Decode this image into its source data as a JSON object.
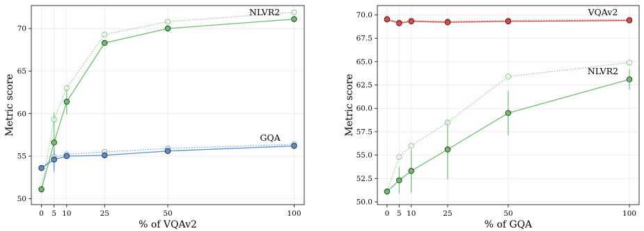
{
  "chart_data": [
    {
      "type": "line",
      "xlabel": "% of VQAv2",
      "ylabel": "Metric score",
      "xlim": [
        -4,
        104
      ],
      "ylim": [
        49.3,
        72.7
      ],
      "xticks": [
        0,
        5,
        10,
        25,
        50,
        100
      ],
      "yticks": [
        50,
        55,
        60,
        65,
        70
      ],
      "grid": true,
      "series": [
        {
          "name": "NLVR2",
          "color": "#6abf69",
          "x": [
            0,
            5,
            10,
            25,
            50,
            100
          ],
          "solid": [
            51.1,
            56.6,
            61.4,
            68.3,
            70.0,
            71.1
          ],
          "dotted": [
            51.1,
            59.3,
            63.0,
            69.3,
            70.8,
            71.9
          ],
          "err": [
            0.4,
            3.5,
            1.5,
            0.3,
            0.3,
            0.3
          ]
        },
        {
          "name": "GQA",
          "color": "#5b8ec7",
          "x": [
            0,
            5,
            10,
            25,
            50,
            100
          ],
          "solid": [
            53.6,
            54.6,
            55.0,
            55.1,
            55.6,
            56.2
          ],
          "dotted": [
            53.6,
            54.9,
            55.2,
            55.5,
            55.9,
            56.4
          ],
          "err": [
            0.3,
            1.1,
            0.3,
            0.2,
            0.2,
            0.2
          ]
        }
      ]
    },
    {
      "type": "line",
      "xlabel": "% of GQA",
      "ylabel": "Metric score",
      "xlim": [
        -4,
        104
      ],
      "ylim": [
        49.7,
        71.0
      ],
      "xticks": [
        0,
        5,
        10,
        25,
        50,
        100
      ],
      "yticks": [
        50.0,
        52.5,
        55.0,
        57.5,
        60.0,
        62.5,
        65.0,
        67.5,
        70.0
      ],
      "grid": true,
      "series": [
        {
          "name": "VQAv2",
          "color": "#d94a4a",
          "x": [
            0,
            5,
            10,
            25,
            50,
            100
          ],
          "solid": [
            69.5,
            69.1,
            69.3,
            69.2,
            69.3,
            69.4
          ],
          "dotted": [
            69.6,
            69.2,
            69.4,
            69.3,
            69.4,
            69.5
          ],
          "err": [
            0.3,
            0.3,
            0.2,
            0.2,
            0.2,
            0.2
          ]
        },
        {
          "name": "NLVR2",
          "color": "#6abf69",
          "x": [
            0,
            5,
            10,
            25,
            50,
            100
          ],
          "solid": [
            51.1,
            52.3,
            53.3,
            55.6,
            59.5,
            63.1
          ],
          "dotted": [
            51.1,
            54.8,
            56.0,
            58.5,
            63.4,
            64.9
          ],
          "err": [
            0.3,
            1.4,
            2.3,
            3.2,
            2.4,
            1.1
          ]
        }
      ]
    }
  ]
}
